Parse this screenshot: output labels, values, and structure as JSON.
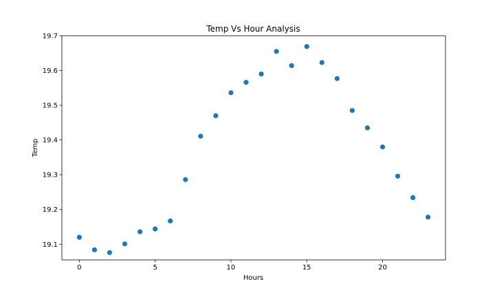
{
  "chart_data": {
    "type": "scatter",
    "title": "Temp Vs Hour Analysis",
    "xlabel": "Hours",
    "ylabel": "Temp",
    "xlim": [
      -1.15,
      24.15
    ],
    "ylim": [
      19.055,
      19.7
    ],
    "xticks": [
      0,
      5,
      10,
      15,
      20
    ],
    "yticks": [
      19.1,
      19.2,
      19.3,
      19.4,
      19.5,
      19.6,
      19.7
    ],
    "grid": false,
    "marker_color": "#1f77b4",
    "series": [
      {
        "x": [
          0,
          1,
          2,
          3,
          4,
          5,
          6,
          7,
          8,
          9,
          10,
          11,
          12,
          13,
          14,
          15,
          16,
          17,
          18,
          19,
          20,
          21,
          22,
          23
        ],
        "y": [
          19.12,
          19.084,
          19.076,
          19.101,
          19.136,
          19.144,
          19.167,
          19.286,
          19.411,
          19.47,
          19.536,
          19.566,
          19.59,
          19.655,
          19.614,
          19.669,
          19.623,
          19.577,
          19.485,
          19.435,
          19.38,
          19.296,
          19.234,
          19.178
        ]
      }
    ]
  }
}
